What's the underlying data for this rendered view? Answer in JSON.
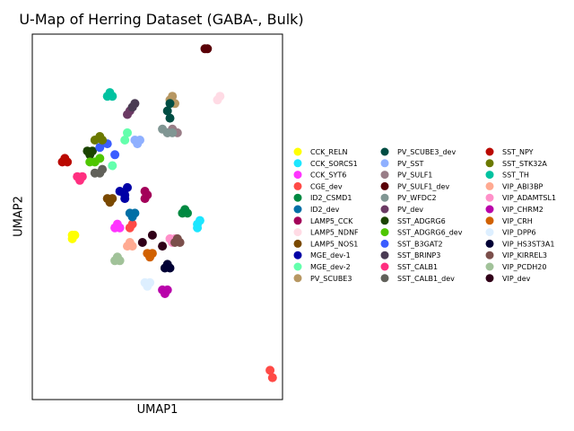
{
  "chart_data": {
    "type": "scatter",
    "title": "U-Map of Herring Dataset (GABA-, Bulk)",
    "xlabel": "UMAP1",
    "ylabel": "UMAP2",
    "xlim": [
      0,
      100
    ],
    "ylim": [
      0,
      100
    ],
    "ticks": "none",
    "grid": false,
    "legend_position": "right (outside plot, 3 columns)",
    "series": [
      {
        "name": "CCK_RELN",
        "color": "#ffff00",
        "points": [
          [
            16,
            45
          ],
          [
            16,
            44
          ],
          [
            17,
            45
          ]
        ]
      },
      {
        "name": "CCK_SORCS1",
        "color": "#1ce6ff",
        "points": [
          [
            66,
            48
          ],
          [
            67,
            49
          ],
          [
            66,
            47
          ]
        ]
      },
      {
        "name": "CCK_SYT6",
        "color": "#ff34ff",
        "points": [
          [
            33,
            47
          ],
          [
            34,
            48
          ],
          [
            35,
            47
          ]
        ]
      },
      {
        "name": "CGE_dev",
        "color": "#ff4a46",
        "points": [
          [
            39,
            47
          ],
          [
            40,
            48
          ],
          [
            95,
            8
          ],
          [
            96,
            6
          ]
        ]
      },
      {
        "name": "ID2_CSMD1",
        "color": "#008941",
        "points": [
          [
            60,
            51
          ],
          [
            61,
            52
          ],
          [
            62,
            51
          ]
        ]
      },
      {
        "name": "ID2_dev",
        "color": "#006fa6",
        "points": [
          [
            39,
            51
          ],
          [
            40,
            50
          ],
          [
            41,
            51
          ]
        ]
      },
      {
        "name": "LAMP5_CCK",
        "color": "#a30059",
        "points": [
          [
            45,
            55
          ],
          [
            45,
            57
          ],
          [
            46,
            56
          ]
        ]
      },
      {
        "name": "LAMP5_NDNF",
        "color": "#ffdbe5",
        "points": [
          [
            74,
            82
          ],
          [
            75,
            83
          ]
        ]
      },
      {
        "name": "LAMP5_NOS1",
        "color": "#7a4900",
        "points": [
          [
            30,
            55
          ],
          [
            31,
            54
          ],
          [
            32,
            55
          ]
        ]
      },
      {
        "name": "MGE_dev-1",
        "color": "#0000a6",
        "points": [
          [
            35,
            57
          ],
          [
            37,
            56
          ],
          [
            38,
            58
          ],
          [
            37,
            55
          ]
        ]
      },
      {
        "name": "MGE_dev-2",
        "color": "#63ffac",
        "points": [
          [
            32,
            64
          ],
          [
            37,
            71
          ],
          [
            38,
            73
          ]
        ]
      },
      {
        "name": "PV_SCUBE3",
        "color": "#b79762",
        "points": [
          [
            55,
            82
          ],
          [
            56,
            83
          ],
          [
            57,
            81
          ]
        ]
      },
      {
        "name": "PV_SCUBE3_dev",
        "color": "#004d43",
        "points": [
          [
            54,
            79
          ],
          [
            55,
            81
          ],
          [
            55,
            77
          ]
        ]
      },
      {
        "name": "PV_SST",
        "color": "#8fb0ff",
        "points": [
          [
            41,
            71
          ],
          [
            42,
            70
          ],
          [
            43,
            71
          ]
        ]
      },
      {
        "name": "PV_SULF1",
        "color": "#997d87",
        "points": [
          [
            54,
            73
          ],
          [
            56,
            74
          ],
          [
            58,
            73
          ]
        ]
      },
      {
        "name": "PV_SULF1_dev",
        "color": "#5a0007",
        "points": [
          [
            69,
            96
          ],
          [
            70,
            96
          ]
        ]
      },
      {
        "name": "PV_WFDC2",
        "color": "#809693",
        "points": [
          [
            52,
            74
          ],
          [
            54,
            73
          ],
          [
            56,
            73
          ]
        ]
      },
      {
        "name": "PV_dev",
        "color": "#6b3a64",
        "points": [
          [
            39,
            79
          ],
          [
            40,
            80
          ],
          [
            38,
            78
          ]
        ]
      },
      {
        "name": "SST_ADGRG6",
        "color": "#1b4400",
        "points": [
          [
            22,
            68
          ],
          [
            23,
            67
          ],
          [
            24,
            68
          ]
        ]
      },
      {
        "name": "SST_ADGRG6_dev",
        "color": "#4fc601",
        "points": [
          [
            23,
            65
          ],
          [
            25,
            65
          ],
          [
            27,
            66
          ]
        ]
      },
      {
        "name": "SST_B3GAT2",
        "color": "#3b5dff",
        "points": [
          [
            27,
            69
          ],
          [
            30,
            70
          ],
          [
            33,
            67
          ]
        ]
      },
      {
        "name": "SST_BRINP3",
        "color": "#4a3b53",
        "points": [
          [
            40,
            80
          ],
          [
            41,
            81
          ]
        ]
      },
      {
        "name": "SST_CALB1",
        "color": "#ff2f80",
        "points": [
          [
            18,
            61
          ],
          [
            19,
            60
          ],
          [
            20,
            61
          ]
        ]
      },
      {
        "name": "SST_CALB1_dev",
        "color": "#61615a",
        "points": [
          [
            25,
            62
          ],
          [
            27,
            62
          ],
          [
            28,
            63
          ]
        ]
      },
      {
        "name": "SST_NPY",
        "color": "#ba0900",
        "points": [
          [
            12,
            65
          ],
          [
            13,
            66
          ],
          [
            14,
            65
          ]
        ]
      },
      {
        "name": "SST_STK32A",
        "color": "#6b7900",
        "points": [
          [
            25,
            71
          ],
          [
            27,
            72
          ],
          [
            28,
            71
          ]
        ]
      },
      {
        "name": "SST_TH",
        "color": "#00c2a0",
        "points": [
          [
            30,
            83
          ],
          [
            31,
            84
          ],
          [
            32,
            83
          ]
        ]
      },
      {
        "name": "VIP_ABI3BP",
        "color": "#ffaa92",
        "points": [
          [
            38,
            42
          ],
          [
            39,
            43
          ],
          [
            40,
            42
          ]
        ]
      },
      {
        "name": "VIP_ADAMTSL1",
        "color": "#ff90c9",
        "points": [
          [
            55,
            44
          ],
          [
            56,
            43
          ],
          [
            57,
            44
          ]
        ]
      },
      {
        "name": "VIP_CHRM2",
        "color": "#b903aa",
        "points": [
          [
            52,
            30
          ],
          [
            53,
            29
          ],
          [
            54,
            30
          ]
        ]
      },
      {
        "name": "VIP_CRH",
        "color": "#d16100",
        "points": [
          [
            46,
            40
          ],
          [
            47,
            39
          ],
          [
            48,
            40
          ]
        ]
      },
      {
        "name": "VIP_DPP6",
        "color": "#ddefff",
        "points": [
          [
            45,
            32
          ],
          [
            46,
            31
          ],
          [
            47,
            32
          ]
        ]
      },
      {
        "name": "VIP_HS3ST3A1",
        "color": "#000035",
        "points": [
          [
            53,
            36
          ],
          [
            54,
            37
          ],
          [
            55,
            36
          ]
        ]
      },
      {
        "name": "VIP_KIRREL3",
        "color": "#7b4f4b",
        "points": [
          [
            57,
            43
          ],
          [
            58,
            44
          ],
          [
            59,
            43
          ]
        ]
      },
      {
        "name": "VIP_PCDH20",
        "color": "#a1c299",
        "points": [
          [
            33,
            38
          ],
          [
            34,
            39
          ],
          [
            35,
            38
          ]
        ]
      },
      {
        "name": "VIP_dev",
        "color": "#300018",
        "points": [
          [
            44,
            43
          ],
          [
            48,
            45
          ],
          [
            52,
            42
          ]
        ]
      }
    ]
  }
}
